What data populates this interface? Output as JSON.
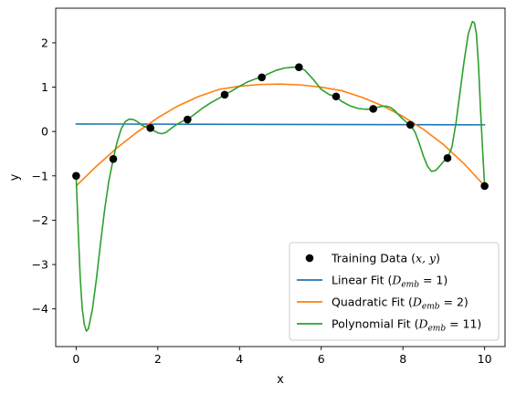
{
  "chart_data": {
    "type": "scatter",
    "title": "",
    "xlabel": "x",
    "ylabel": "y",
    "xlim": [
      -0.5,
      10.5
    ],
    "ylim": [
      -4.85,
      2.78
    ],
    "x_ticks": [
      0,
      2,
      4,
      6,
      8,
      10
    ],
    "x_tick_labels": [
      "0",
      "2",
      "4",
      "6",
      "8",
      "10"
    ],
    "y_ticks": [
      -4,
      -3,
      -2,
      -1,
      0,
      1,
      2
    ],
    "y_tick_labels": [
      "−4",
      "−3",
      "−2",
      "−1",
      "0",
      "1",
      "2"
    ],
    "grid": false,
    "legend_position": "lower-right",
    "series": [
      {
        "name": "Training Data",
        "legend_parts": {
          "main": "Training Data (",
          "math": "x, y",
          "tail": ")"
        },
        "kind": "scatter",
        "color": "#000000",
        "x": [
          0,
          0.909,
          1.818,
          2.727,
          3.636,
          4.545,
          5.455,
          6.364,
          7.273,
          8.182,
          9.091,
          10
        ],
        "y": [
          -1.0,
          -0.62,
          0.08,
          0.27,
          0.83,
          1.22,
          1.45,
          0.79,
          0.51,
          0.15,
          -0.6,
          -1.23
        ]
      },
      {
        "name": "Linear Fit",
        "legend_parts": {
          "main": "Linear Fit (",
          "math": "D",
          "sub": "emb",
          "tail": " = 1)"
        },
        "kind": "line",
        "color": "#1f77b4",
        "x": [
          0,
          10
        ],
        "y": [
          0.17,
          0.15
        ]
      },
      {
        "name": "Quadratic Fit",
        "legend_parts": {
          "main": "Quadratic Fit (",
          "math": "D",
          "sub": "emb",
          "tail": " = 2)"
        },
        "kind": "line",
        "color": "#ff7f0e",
        "x": [
          0,
          0.5,
          1,
          1.5,
          2,
          2.5,
          3,
          3.5,
          4,
          4.5,
          5,
          5.5,
          6,
          6.5,
          7,
          7.5,
          8,
          8.5,
          9,
          9.5,
          10
        ],
        "y": [
          -1.23,
          -0.78,
          -0.37,
          -0.01,
          0.31,
          0.58,
          0.79,
          0.95,
          1.02,
          1.06,
          1.07,
          1.05,
          1.0,
          0.92,
          0.77,
          0.58,
          0.34,
          0.05,
          -0.3,
          -0.73,
          -1.23
        ]
      },
      {
        "name": "Polynomial Fit",
        "legend_parts": {
          "main": "Polynomial Fit (",
          "math": "D",
          "sub": "emb",
          "tail": " = 11)"
        },
        "kind": "line",
        "color": "#2ca02c",
        "x": [
          0,
          0.05,
          0.1,
          0.15,
          0.2,
          0.25,
          0.3,
          0.4,
          0.5,
          0.6,
          0.7,
          0.8,
          0.909,
          1.0,
          1.1,
          1.2,
          1.3,
          1.4,
          1.5,
          1.6,
          1.7,
          1.818,
          1.9,
          2.0,
          2.1,
          2.2,
          2.3,
          2.4,
          2.5,
          2.6,
          2.727,
          2.9,
          3.1,
          3.3,
          3.5,
          3.636,
          3.8,
          4.0,
          4.2,
          4.4,
          4.545,
          4.7,
          4.9,
          5.1,
          5.3,
          5.455,
          5.6,
          5.8,
          6.0,
          6.2,
          6.364,
          6.5,
          6.7,
          6.9,
          7.1,
          7.273,
          7.4,
          7.5,
          7.6,
          7.7,
          7.8,
          7.9,
          8.0,
          8.1,
          8.182,
          8.3,
          8.4,
          8.5,
          8.6,
          8.7,
          8.8,
          8.9,
          9.0,
          9.091,
          9.2,
          9.3,
          9.4,
          9.5,
          9.6,
          9.7,
          9.75,
          9.8,
          9.85,
          9.9,
          9.95,
          10
        ],
        "y": [
          -1.0,
          -2.2,
          -3.3,
          -4.0,
          -4.35,
          -4.5,
          -4.45,
          -4.0,
          -3.3,
          -2.5,
          -1.75,
          -1.12,
          -0.62,
          -0.25,
          0.05,
          0.22,
          0.28,
          0.27,
          0.22,
          0.15,
          0.1,
          0.08,
          0.02,
          -0.03,
          -0.05,
          -0.02,
          0.05,
          0.12,
          0.18,
          0.23,
          0.27,
          0.39,
          0.53,
          0.65,
          0.75,
          0.83,
          0.91,
          1.02,
          1.12,
          1.19,
          1.22,
          1.3,
          1.38,
          1.43,
          1.45,
          1.45,
          1.38,
          1.18,
          0.95,
          0.83,
          0.79,
          0.68,
          0.58,
          0.52,
          0.5,
          0.51,
          0.55,
          0.57,
          0.57,
          0.54,
          0.47,
          0.37,
          0.28,
          0.2,
          0.15,
          -0.02,
          -0.27,
          -0.55,
          -0.78,
          -0.9,
          -0.88,
          -0.78,
          -0.67,
          -0.6,
          -0.35,
          0.2,
          0.9,
          1.6,
          2.2,
          2.48,
          2.45,
          2.2,
          1.5,
          0.5,
          -0.4,
          -1.23
        ]
      }
    ]
  }
}
